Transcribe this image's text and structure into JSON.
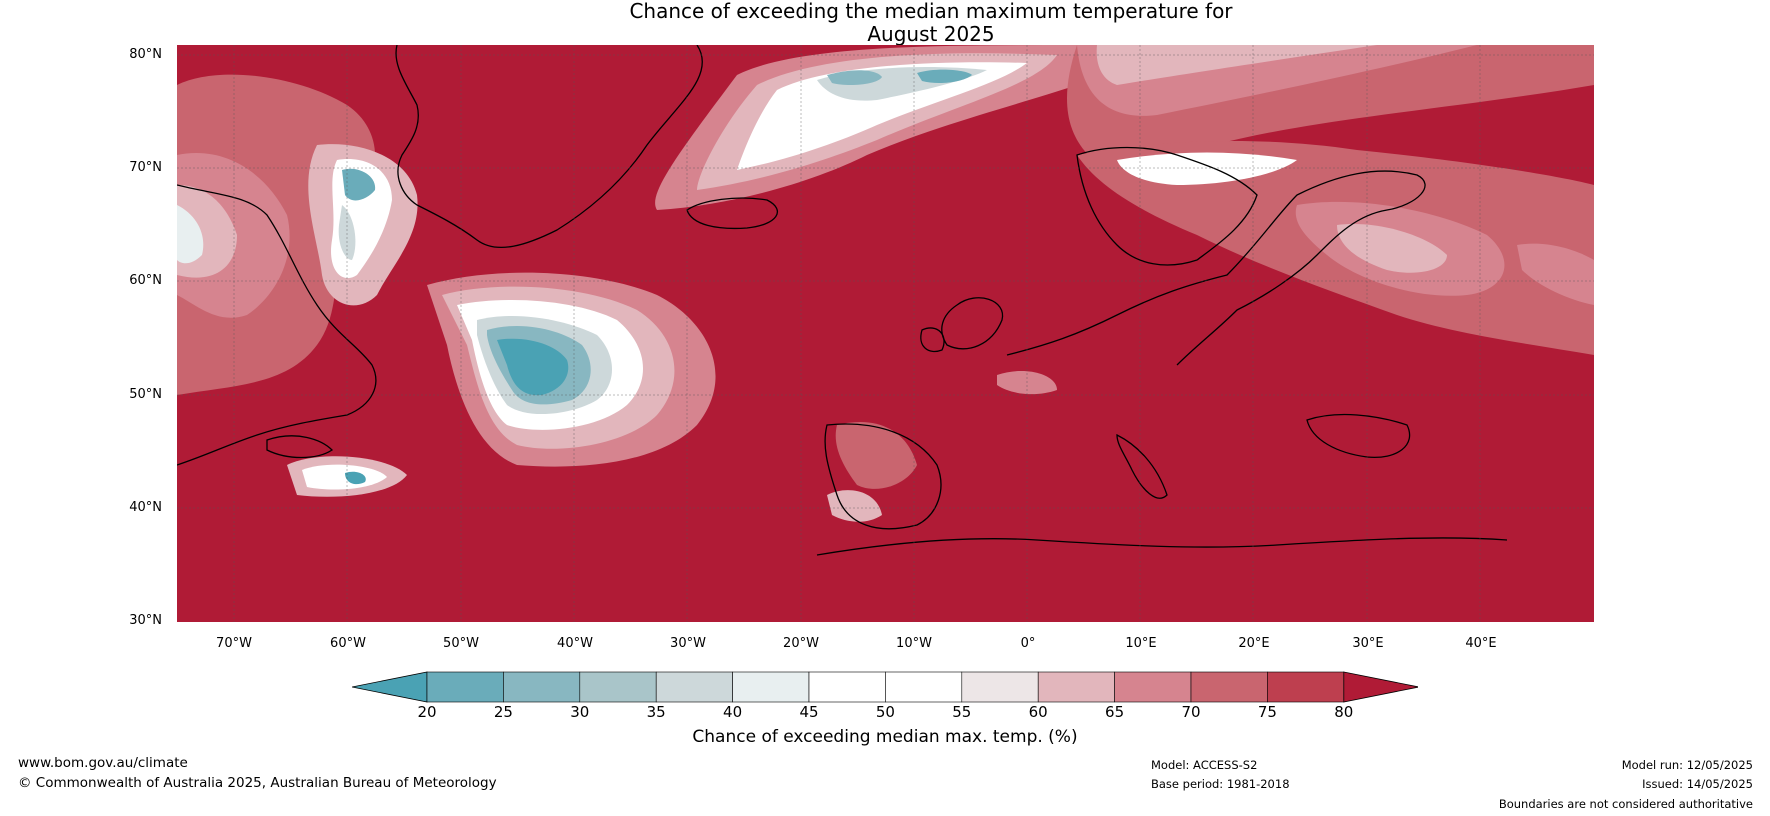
{
  "title": {
    "line1": "Chance of exceeding the median maximum temperature for",
    "line2": "August 2025"
  },
  "latitude_ticks": [
    "80°N",
    "70°N",
    "60°N",
    "50°N",
    "40°N",
    "30°N"
  ],
  "longitude_ticks": [
    "70°W",
    "60°W",
    "50°W",
    "40°W",
    "30°W",
    "20°W",
    "10°W",
    "0°",
    "10°E",
    "20°E",
    "30°E",
    "40°E"
  ],
  "colorbar": {
    "labels": [
      "20",
      "25",
      "30",
      "35",
      "40",
      "45",
      "50",
      "55",
      "60",
      "65",
      "70",
      "75",
      "80"
    ],
    "colors": [
      "#4aa2b4",
      "#6aacba",
      "#88b7c1",
      "#a9c5c9",
      "#cdd8da",
      "#e8eff0",
      "#ffffff",
      "#ffffff",
      "#ede6e7",
      "#e2b6bc",
      "#d6848f",
      "#c9656f",
      "#be3f4f"
    ],
    "under_color": "#4aa2b4",
    "over_color": "#b01b36",
    "title": "Chance of exceeding median max. temp. (%)"
  },
  "footer": {
    "website": "www.bom.gov.au/climate",
    "copyright": "© Commonwealth of Australia 2025, Australian Bureau of Meteorology",
    "model": "Model: ACCESS-S2",
    "base_period": "Base period: 1981-2018",
    "model_run": "Model run: 12/05/2025",
    "issued": "Issued: 14/05/2025",
    "disclaimer": "Boundaries are not considered authoritative"
  }
}
